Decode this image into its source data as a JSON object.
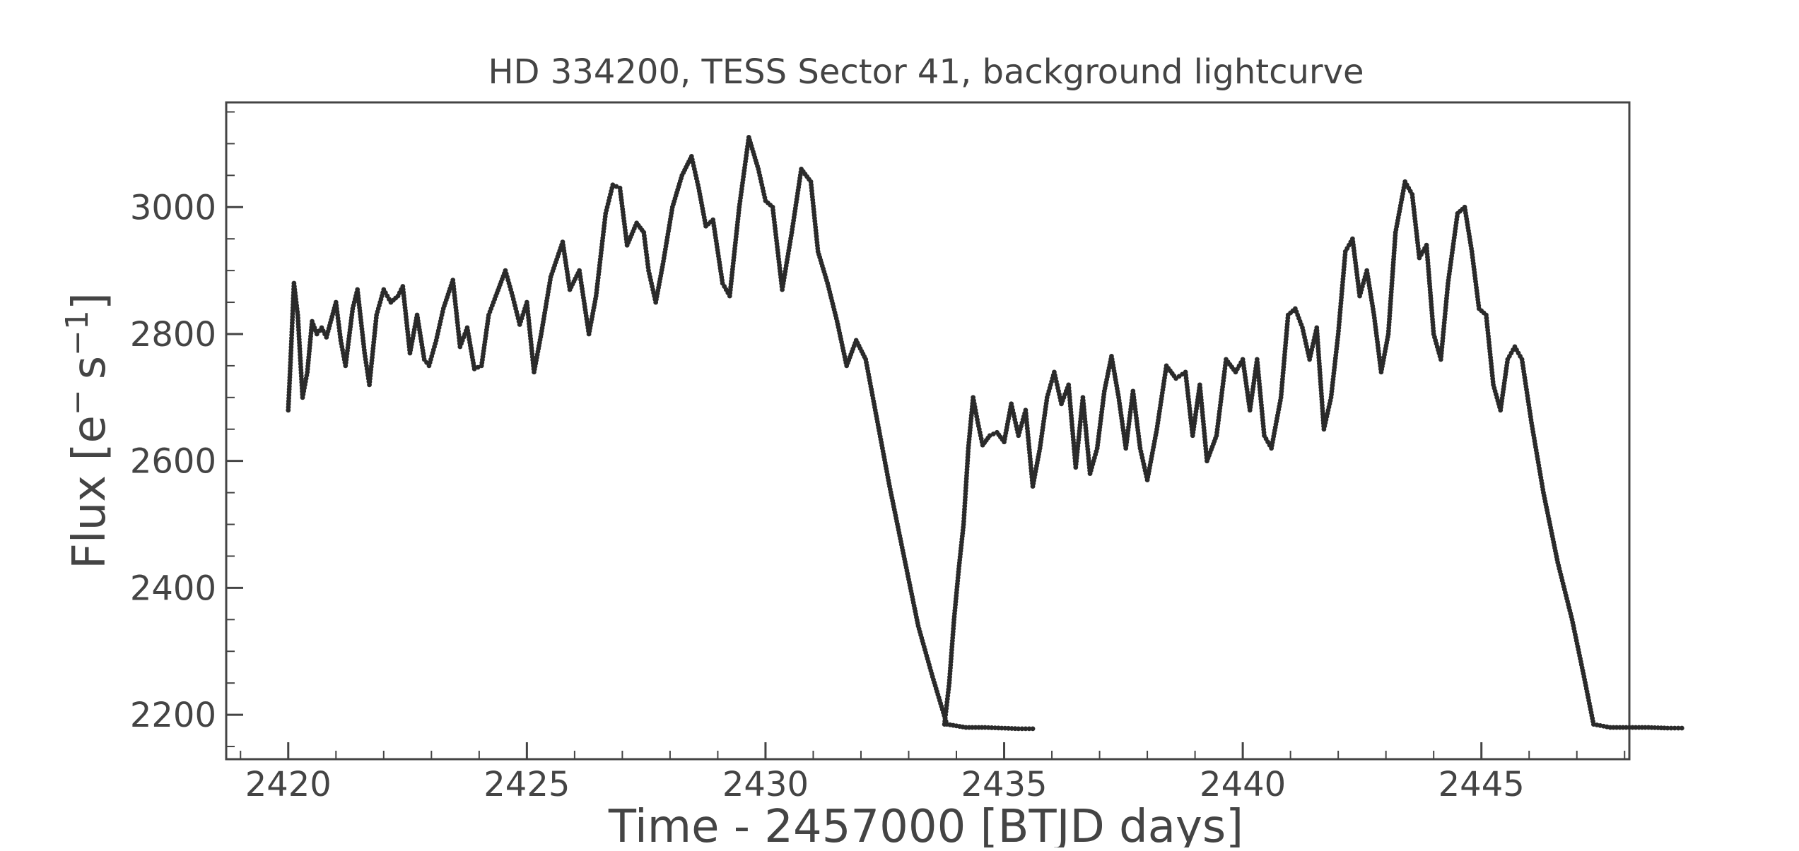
{
  "chart_data": {
    "type": "scatter",
    "title": "HD 334200, TESS Sector 41, background lightcurve",
    "xlabel": "Time - 2457000 [BTJD days]",
    "ylabel_base": "Flux [e",
    "ylabel_sup1": "−",
    "ylabel_mid": "s",
    "ylabel_sup2": "−1",
    "ylabel_end": "]",
    "xlim": [
      2418.7,
      2448.1
    ],
    "ylim": [
      2130,
      3165
    ],
    "x_ticks": [
      2420,
      2425,
      2430,
      2435,
      2440,
      2445
    ],
    "x_tick_labels": [
      "2420",
      "2425",
      "2430",
      "2435",
      "2440",
      "2445"
    ],
    "y_ticks": [
      2200,
      2400,
      2600,
      2800,
      3000
    ],
    "y_tick_labels": [
      "2200",
      "2400",
      "2600",
      "2800",
      "3000"
    ],
    "x_minor_step": 1,
    "y_minor_step": 50,
    "grid": false,
    "marker_color": "#2a2a2a",
    "axis_color": "#444444",
    "series": [
      {
        "segment": 1,
        "points": [
          [
            2420.0,
            2680
          ],
          [
            2420.05,
            2760
          ],
          [
            2420.12,
            2880
          ],
          [
            2420.2,
            2830
          ],
          [
            2420.3,
            2700
          ],
          [
            2420.4,
            2740
          ],
          [
            2420.5,
            2820
          ],
          [
            2420.6,
            2800
          ],
          [
            2420.7,
            2810
          ],
          [
            2420.8,
            2795
          ],
          [
            2421.0,
            2850
          ],
          [
            2421.1,
            2790
          ],
          [
            2421.2,
            2750
          ],
          [
            2421.35,
            2840
          ],
          [
            2421.45,
            2870
          ],
          [
            2421.6,
            2770
          ],
          [
            2421.7,
            2720
          ],
          [
            2421.85,
            2830
          ],
          [
            2422.0,
            2870
          ],
          [
            2422.15,
            2850
          ],
          [
            2422.3,
            2860
          ],
          [
            2422.4,
            2875
          ],
          [
            2422.55,
            2770
          ],
          [
            2422.7,
            2830
          ],
          [
            2422.85,
            2760
          ],
          [
            2422.95,
            2750
          ],
          [
            2423.1,
            2790
          ],
          [
            2423.25,
            2840
          ],
          [
            2423.45,
            2885
          ],
          [
            2423.6,
            2780
          ],
          [
            2423.75,
            2810
          ],
          [
            2423.9,
            2745
          ],
          [
            2424.05,
            2750
          ],
          [
            2424.2,
            2830
          ],
          [
            2424.35,
            2860
          ],
          [
            2424.55,
            2900
          ],
          [
            2424.7,
            2860
          ],
          [
            2424.85,
            2815
          ],
          [
            2425.0,
            2850
          ],
          [
            2425.15,
            2740
          ],
          [
            2425.3,
            2800
          ],
          [
            2425.5,
            2890
          ],
          [
            2425.75,
            2945
          ],
          [
            2425.9,
            2870
          ],
          [
            2426.1,
            2900
          ],
          [
            2426.3,
            2800
          ],
          [
            2426.45,
            2860
          ],
          [
            2426.65,
            2990
          ],
          [
            2426.8,
            3035
          ],
          [
            2426.95,
            3030
          ],
          [
            2427.1,
            2940
          ],
          [
            2427.3,
            2975
          ],
          [
            2427.45,
            2960
          ],
          [
            2427.55,
            2900
          ],
          [
            2427.7,
            2850
          ],
          [
            2427.85,
            2910
          ],
          [
            2428.05,
            3000
          ],
          [
            2428.25,
            3050
          ],
          [
            2428.45,
            3080
          ],
          [
            2428.6,
            3030
          ],
          [
            2428.75,
            2970
          ],
          [
            2428.9,
            2980
          ],
          [
            2429.1,
            2880
          ],
          [
            2429.25,
            2860
          ],
          [
            2429.45,
            3000
          ],
          [
            2429.65,
            3110
          ],
          [
            2429.85,
            3060
          ],
          [
            2430.0,
            3010
          ],
          [
            2430.15,
            3000
          ],
          [
            2430.35,
            2870
          ],
          [
            2430.55,
            2960
          ],
          [
            2430.75,
            3060
          ],
          [
            2430.95,
            3040
          ],
          [
            2431.1,
            2930
          ],
          [
            2431.3,
            2880
          ],
          [
            2431.5,
            2820
          ],
          [
            2431.7,
            2750
          ],
          [
            2431.9,
            2790
          ],
          [
            2432.1,
            2760
          ],
          [
            2432.3,
            2680
          ],
          [
            2432.6,
            2560
          ],
          [
            2432.9,
            2450
          ],
          [
            2433.2,
            2340
          ],
          [
            2433.5,
            2260
          ],
          [
            2433.8,
            2185
          ],
          [
            2434.2,
            2180
          ],
          [
            2434.6,
            2180
          ],
          [
            2434.95,
            2179
          ],
          [
            2435.3,
            2178
          ],
          [
            2435.6,
            2178
          ]
        ]
      },
      {
        "segment": 2,
        "points": [
          [
            2433.75,
            2185
          ],
          [
            2433.85,
            2250
          ],
          [
            2433.95,
            2350
          ],
          [
            2434.05,
            2430
          ],
          [
            2434.15,
            2500
          ],
          [
            2434.25,
            2620
          ],
          [
            2434.35,
            2700
          ],
          [
            2434.45,
            2660
          ],
          [
            2434.55,
            2625
          ],
          [
            2434.7,
            2640
          ],
          [
            2434.85,
            2645
          ],
          [
            2435.0,
            2630
          ],
          [
            2435.15,
            2690
          ],
          [
            2435.3,
            2640
          ],
          [
            2435.45,
            2680
          ],
          [
            2435.6,
            2560
          ],
          [
            2435.75,
            2620
          ],
          [
            2435.9,
            2700
          ],
          [
            2436.05,
            2740
          ],
          [
            2436.2,
            2690
          ],
          [
            2436.35,
            2720
          ],
          [
            2436.5,
            2590
          ],
          [
            2436.65,
            2700
          ],
          [
            2436.8,
            2580
          ],
          [
            2436.95,
            2620
          ],
          [
            2437.1,
            2710
          ],
          [
            2437.25,
            2765
          ],
          [
            2437.4,
            2700
          ],
          [
            2437.55,
            2620
          ],
          [
            2437.7,
            2710
          ],
          [
            2437.85,
            2620
          ],
          [
            2438.0,
            2570
          ],
          [
            2438.2,
            2650
          ],
          [
            2438.4,
            2750
          ],
          [
            2438.6,
            2730
          ],
          [
            2438.8,
            2740
          ],
          [
            2438.95,
            2640
          ],
          [
            2439.1,
            2720
          ],
          [
            2439.25,
            2600
          ],
          [
            2439.45,
            2640
          ],
          [
            2439.65,
            2760
          ],
          [
            2439.85,
            2740
          ],
          [
            2440.0,
            2760
          ],
          [
            2440.15,
            2680
          ],
          [
            2440.3,
            2760
          ],
          [
            2440.45,
            2640
          ],
          [
            2440.6,
            2620
          ],
          [
            2440.8,
            2700
          ],
          [
            2440.95,
            2830
          ],
          [
            2441.1,
            2840
          ],
          [
            2441.25,
            2810
          ],
          [
            2441.4,
            2760
          ],
          [
            2441.55,
            2810
          ],
          [
            2441.7,
            2650
          ],
          [
            2441.85,
            2700
          ],
          [
            2442.0,
            2800
          ],
          [
            2442.15,
            2930
          ],
          [
            2442.3,
            2950
          ],
          [
            2442.45,
            2860
          ],
          [
            2442.6,
            2900
          ],
          [
            2442.75,
            2830
          ],
          [
            2442.9,
            2740
          ],
          [
            2443.05,
            2800
          ],
          [
            2443.2,
            2960
          ],
          [
            2443.4,
            3040
          ],
          [
            2443.55,
            3020
          ],
          [
            2443.7,
            2920
          ],
          [
            2443.85,
            2940
          ],
          [
            2444.0,
            2800
          ],
          [
            2444.15,
            2760
          ],
          [
            2444.3,
            2880
          ],
          [
            2444.5,
            2990
          ],
          [
            2444.65,
            3000
          ],
          [
            2444.8,
            2930
          ],
          [
            2444.95,
            2840
          ],
          [
            2445.1,
            2830
          ],
          [
            2445.25,
            2720
          ],
          [
            2445.4,
            2680
          ],
          [
            2445.55,
            2760
          ],
          [
            2445.7,
            2780
          ],
          [
            2445.85,
            2760
          ],
          [
            2446.05,
            2660
          ],
          [
            2446.3,
            2550
          ],
          [
            2446.6,
            2440
          ],
          [
            2446.9,
            2350
          ],
          [
            2447.15,
            2260
          ],
          [
            2447.35,
            2185
          ],
          [
            2447.7,
            2180
          ],
          [
            2448.1,
            2180
          ],
          [
            2448.5,
            2180
          ],
          [
            2448.9,
            2179
          ],
          [
            2449.2,
            2179
          ]
        ]
      }
    ]
  }
}
